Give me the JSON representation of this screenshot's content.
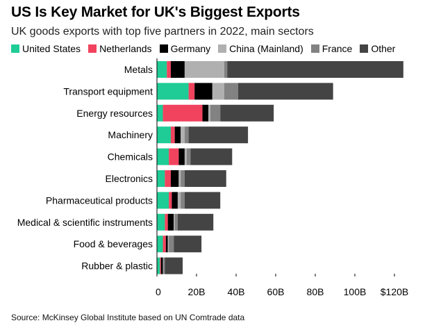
{
  "title": "US Is Key Market for UK's Biggest Exports",
  "subtitle": "UK goods exports with top five partners in 2022, main sectors",
  "source": "Source: McKinsey Global Institute based on UN Comtrade data",
  "colors": {
    "United States": "#1fcc95",
    "Netherlands": "#f2435e",
    "Germany": "#000000",
    "China (Mainland)": "#b0b0b0",
    "France": "#828282",
    "Other": "#444444"
  },
  "chart_data": {
    "type": "bar",
    "orientation": "horizontal",
    "stacked": true,
    "legend_position": "top",
    "xlim": [
      0,
      125
    ],
    "x_ticks": [
      0,
      20,
      40,
      60,
      80,
      100,
      120
    ],
    "x_tick_labels": [
      "0",
      "20B",
      "40B",
      "60B",
      "80B",
      "100B",
      "$120B"
    ],
    "categories": [
      "Metals",
      "Transport equipment",
      "Energy resources",
      "Machinery",
      "Chemicals",
      "Electronics",
      "Pharmaceutical products",
      "Medical & scientific instruments",
      "Food & beverages",
      "Rubber & plastic"
    ],
    "series": [
      {
        "name": "United States",
        "values": [
          5,
          16,
          3,
          7,
          6,
          4,
          6,
          4,
          3,
          1.5
        ]
      },
      {
        "name": "Netherlands",
        "values": [
          2,
          3,
          20,
          2,
          5,
          3,
          1.5,
          1.5,
          1.5,
          0.5
        ]
      },
      {
        "name": "Germany",
        "values": [
          7,
          9,
          3,
          3,
          3,
          4,
          3,
          3,
          1,
          1
        ]
      },
      {
        "name": "China (Mainland)",
        "values": [
          20,
          6,
          1,
          2,
          1,
          1,
          1.5,
          0.5,
          0.5,
          0.3
        ]
      },
      {
        "name": "France",
        "values": [
          1.5,
          7,
          5,
          2,
          2,
          2,
          2,
          1.5,
          2.5,
          0.7
        ]
      },
      {
        "name": "Other",
        "values": [
          89,
          48,
          27,
          30,
          21,
          21,
          18,
          18,
          14,
          9
        ]
      }
    ]
  }
}
